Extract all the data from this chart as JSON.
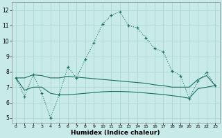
{
  "title": "",
  "xlabel": "Humidex (Indice chaleur)",
  "xlim": [
    -0.5,
    23.5
  ],
  "ylim": [
    4.7,
    12.5
  ],
  "yticks": [
    5,
    6,
    7,
    8,
    9,
    10,
    11,
    12
  ],
  "xticks": [
    0,
    1,
    2,
    3,
    4,
    5,
    6,
    7,
    8,
    9,
    10,
    11,
    12,
    13,
    14,
    15,
    16,
    17,
    18,
    19,
    20,
    21,
    22,
    23
  ],
  "bg_color": "#c8eae8",
  "grid_color": "#b0d8d5",
  "line_color": "#1a6e64",
  "line1_x": [
    0,
    1,
    2,
    3,
    4,
    5,
    6,
    7,
    8,
    9,
    10,
    11,
    12,
    13,
    14,
    15,
    16,
    17,
    18,
    19,
    20,
    21,
    22,
    23
  ],
  "line1_y": [
    7.6,
    6.4,
    7.8,
    6.6,
    5.0,
    6.5,
    8.3,
    7.6,
    8.8,
    9.9,
    11.1,
    11.65,
    11.9,
    11.0,
    10.85,
    10.2,
    9.5,
    9.3,
    8.05,
    7.75,
    6.25,
    7.4,
    7.95,
    7.1
  ],
  "line2_x": [
    0,
    1,
    2,
    3,
    4,
    5,
    6,
    7,
    8,
    9,
    10,
    11,
    12,
    13,
    14,
    15,
    16,
    17,
    18,
    19,
    20,
    21,
    22,
    23
  ],
  "line2_y": [
    7.6,
    7.6,
    7.8,
    7.75,
    7.6,
    7.6,
    7.7,
    7.65,
    7.6,
    7.55,
    7.5,
    7.45,
    7.4,
    7.35,
    7.3,
    7.25,
    7.15,
    7.1,
    7.0,
    7.0,
    7.0,
    7.5,
    7.75,
    7.1
  ],
  "line3_x": [
    0,
    1,
    2,
    3,
    4,
    5,
    6,
    7,
    8,
    9,
    10,
    11,
    12,
    13,
    14,
    15,
    16,
    17,
    18,
    19,
    20,
    21,
    22,
    23
  ],
  "line3_y": [
    7.6,
    6.8,
    7.0,
    7.0,
    6.6,
    6.5,
    6.5,
    6.55,
    6.6,
    6.65,
    6.7,
    6.72,
    6.72,
    6.7,
    6.67,
    6.62,
    6.57,
    6.52,
    6.45,
    6.38,
    6.28,
    6.9,
    7.0,
    7.1
  ]
}
